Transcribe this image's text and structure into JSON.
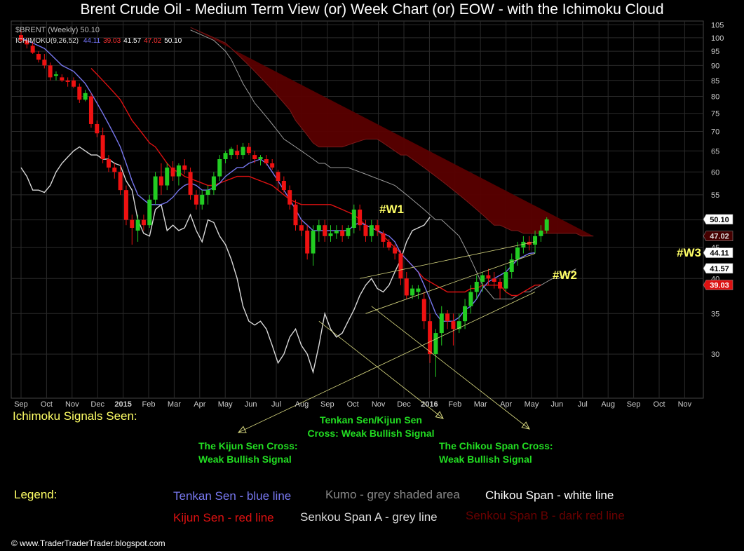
{
  "title": "Brent Crude Oil - Medium Term View (or) Week Chart (or) EOW - with the Ichimoku Cloud",
  "header": {
    "symbol_line": "$BRENT (Weekly) 50.10",
    "ichimoku_label": "ICHIMOKU(9,26,52)",
    "ichimoku_values": [
      {
        "text": "44.11",
        "color": "#7777ff"
      },
      {
        "text": "39.03",
        "color": "#ff3333"
      },
      {
        "text": "41.57",
        "color": "#ffffff"
      },
      {
        "text": "47.02",
        "color": "#ff3333"
      },
      {
        "text": "50.10",
        "color": "#ffffff"
      }
    ]
  },
  "annotations": {
    "w1": "#W1",
    "w2": "#W2",
    "w3": "#W3"
  },
  "signals": {
    "heading": "Ichimoku Signals Seen:",
    "tk_cross": [
      "Tenkan Sen/Kijun Sen",
      "Cross: Weak Bullish Signal"
    ],
    "kijun_cross": [
      "The Kijun Sen Cross:",
      "Weak Bullish Signal"
    ],
    "chikou_cross": [
      "The Chikou Span Cross:",
      "Weak Bullish Signal"
    ]
  },
  "legend": {
    "heading": "Legend:",
    "tenkan": "Tenkan Sen - blue line",
    "kumo": "Kumo - grey shaded area",
    "chikou": "Chikou Span - white line",
    "kijun": "Kijun Sen - red line",
    "senkou_a": "Senkou Span A - grey line",
    "senkou_b": "Senkou Span B - dark red line"
  },
  "copyright": "© www.TraderTraderTrader.blogspot.com",
  "colors": {
    "up": "#22cc22",
    "down": "#ee1111",
    "tenkan": "#7777ee",
    "kijun": "#dd1111",
    "chikou": "#d8d8d8",
    "cloud": "#5a0000",
    "grid": "#2a2a2a",
    "signal_text": "#22dd22",
    "heading_text": "#ffff66",
    "annotation_text": "#ffff66"
  },
  "chart_data": {
    "type": "candlestick",
    "y_scale": "log",
    "ylim": [
      25.5,
      106
    ],
    "y_ticks": [
      105,
      100,
      95,
      90,
      85,
      80,
      75,
      70,
      65,
      60,
      55,
      50,
      45,
      40,
      35,
      30
    ],
    "x_labels": [
      "Sep",
      "Oct",
      "Nov",
      "Dec",
      "2015",
      "Feb",
      "Mar",
      "Apr",
      "May",
      "Jun",
      "Jul",
      "Aug",
      "Sep",
      "Oct",
      "Nov",
      "Dec",
      "2016",
      "Feb",
      "Mar",
      "Apr",
      "May",
      "Jun",
      "Jul",
      "Aug",
      "Sep",
      "Oct",
      "Nov"
    ],
    "price_labels": [
      {
        "text": "50.10",
        "value": 50.1,
        "bg": "#ffffff",
        "fg": "#000000"
      },
      {
        "text": "47.02",
        "value": 47.02,
        "bg": "#440000",
        "fg": "#dddddd"
      },
      {
        "text": "44.11",
        "value": 44.11,
        "bg": "#ffffff",
        "fg": "#000000"
      },
      {
        "text": "41.57",
        "value": 41.57,
        "bg": "#ffffff",
        "fg": "#000000"
      },
      {
        "text": "39.03",
        "value": 39.03,
        "bg": "#dd1111",
        "fg": "#ffffff"
      }
    ],
    "candles": [
      {
        "o": 101,
        "h": 103,
        "l": 98,
        "c": 99
      },
      {
        "o": 99,
        "h": 100,
        "l": 96,
        "c": 97.5
      },
      {
        "o": 97,
        "h": 98.5,
        "l": 94,
        "c": 94.5
      },
      {
        "o": 94,
        "h": 95,
        "l": 91,
        "c": 92
      },
      {
        "o": 92,
        "h": 94,
        "l": 89,
        "c": 90
      },
      {
        "o": 90,
        "h": 91,
        "l": 85,
        "c": 86
      },
      {
        "o": 86.5,
        "h": 88,
        "l": 85,
        "c": 87
      },
      {
        "o": 86,
        "h": 87,
        "l": 84.5,
        "c": 85
      },
      {
        "o": 85,
        "h": 86,
        "l": 83,
        "c": 84.5
      },
      {
        "o": 85,
        "h": 86,
        "l": 82.5,
        "c": 83
      },
      {
        "o": 83,
        "h": 84,
        "l": 78,
        "c": 79
      },
      {
        "o": 79,
        "h": 82,
        "l": 78.5,
        "c": 81
      },
      {
        "o": 80,
        "h": 81,
        "l": 71,
        "c": 72
      },
      {
        "o": 72,
        "h": 73,
        "l": 68.5,
        "c": 69.5
      },
      {
        "o": 69,
        "h": 71,
        "l": 62,
        "c": 63
      },
      {
        "o": 63,
        "h": 64,
        "l": 60,
        "c": 61
      },
      {
        "o": 61,
        "h": 62,
        "l": 58.5,
        "c": 60
      },
      {
        "o": 60,
        "h": 61.5,
        "l": 55,
        "c": 56
      },
      {
        "o": 56,
        "h": 57,
        "l": 49,
        "c": 50
      },
      {
        "o": 50,
        "h": 51,
        "l": 45.5,
        "c": 48.5
      },
      {
        "o": 48,
        "h": 51,
        "l": 46,
        "c": 50
      },
      {
        "o": 50,
        "h": 51,
        "l": 48,
        "c": 49
      },
      {
        "o": 49,
        "h": 55,
        "l": 48.5,
        "c": 54
      },
      {
        "o": 54,
        "h": 60,
        "l": 53,
        "c": 59
      },
      {
        "o": 59,
        "h": 62,
        "l": 55,
        "c": 57
      },
      {
        "o": 57,
        "h": 62,
        "l": 56,
        "c": 61
      },
      {
        "o": 61,
        "h": 62.5,
        "l": 58,
        "c": 59
      },
      {
        "o": 59,
        "h": 62,
        "l": 57,
        "c": 61.5
      },
      {
        "o": 61.5,
        "h": 63,
        "l": 59.5,
        "c": 60.5
      },
      {
        "o": 60,
        "h": 61,
        "l": 54,
        "c": 55
      },
      {
        "o": 55,
        "h": 56,
        "l": 52,
        "c": 53
      },
      {
        "o": 53,
        "h": 56,
        "l": 52,
        "c": 55
      },
      {
        "o": 55,
        "h": 57,
        "l": 53,
        "c": 56
      },
      {
        "o": 56,
        "h": 60,
        "l": 55,
        "c": 59
      },
      {
        "o": 59,
        "h": 64,
        "l": 58,
        "c": 63
      },
      {
        "o": 63,
        "h": 65,
        "l": 62,
        "c": 64.5
      },
      {
        "o": 64,
        "h": 66,
        "l": 63,
        "c": 65.5
      },
      {
        "o": 65,
        "h": 66.5,
        "l": 63,
        "c": 64
      },
      {
        "o": 64,
        "h": 67,
        "l": 63,
        "c": 66
      },
      {
        "o": 66,
        "h": 67,
        "l": 64,
        "c": 64.5
      },
      {
        "o": 64,
        "h": 65,
        "l": 62,
        "c": 63
      },
      {
        "o": 63,
        "h": 64,
        "l": 61.5,
        "c": 63.5
      },
      {
        "o": 63,
        "h": 64,
        "l": 61.5,
        "c": 62
      },
      {
        "o": 62,
        "h": 63,
        "l": 60.5,
        "c": 61
      },
      {
        "o": 60,
        "h": 60.5,
        "l": 56,
        "c": 58
      },
      {
        "o": 58,
        "h": 59,
        "l": 55.5,
        "c": 56
      },
      {
        "o": 56,
        "h": 57,
        "l": 52,
        "c": 53
      },
      {
        "o": 53,
        "h": 54,
        "l": 48,
        "c": 49
      },
      {
        "o": 49,
        "h": 50,
        "l": 47,
        "c": 48
      },
      {
        "o": 48,
        "h": 49,
        "l": 43,
        "c": 44
      },
      {
        "o": 44,
        "h": 49,
        "l": 42,
        "c": 48
      },
      {
        "o": 48,
        "h": 50,
        "l": 46,
        "c": 49
      },
      {
        "o": 49,
        "h": 50,
        "l": 46,
        "c": 47
      },
      {
        "o": 47,
        "h": 49,
        "l": 46,
        "c": 47.5
      },
      {
        "o": 47.5,
        "h": 49,
        "l": 46.5,
        "c": 48
      },
      {
        "o": 48,
        "h": 49,
        "l": 46,
        "c": 47
      },
      {
        "o": 47,
        "h": 49,
        "l": 46.5,
        "c": 48.5
      },
      {
        "o": 48.5,
        "h": 53,
        "l": 47.5,
        "c": 52
      },
      {
        "o": 52,
        "h": 53,
        "l": 48,
        "c": 49
      },
      {
        "o": 49,
        "h": 50,
        "l": 46,
        "c": 47
      },
      {
        "o": 47,
        "h": 50,
        "l": 46,
        "c": 49
      },
      {
        "o": 49,
        "h": 50,
        "l": 47,
        "c": 48
      },
      {
        "o": 47.5,
        "h": 48,
        "l": 45,
        "c": 46
      },
      {
        "o": 46,
        "h": 46.5,
        "l": 44.5,
        "c": 45
      },
      {
        "o": 45,
        "h": 45.5,
        "l": 43,
        "c": 44
      },
      {
        "o": 44,
        "h": 44.5,
        "l": 39,
        "c": 40
      },
      {
        "o": 40,
        "h": 41,
        "l": 37,
        "c": 37.5
      },
      {
        "o": 37.5,
        "h": 39,
        "l": 37,
        "c": 38.5
      },
      {
        "o": 38,
        "h": 39,
        "l": 37,
        "c": 38.5
      },
      {
        "o": 37,
        "h": 38,
        "l": 33,
        "c": 34
      },
      {
        "o": 34,
        "h": 35,
        "l": 29,
        "c": 30
      },
      {
        "o": 30,
        "h": 33,
        "l": 27.5,
        "c": 32.5
      },
      {
        "o": 32.5,
        "h": 36,
        "l": 31,
        "c": 35
      },
      {
        "o": 35,
        "h": 35.5,
        "l": 33,
        "c": 34
      },
      {
        "o": 34,
        "h": 35,
        "l": 31,
        "c": 33
      },
      {
        "o": 33,
        "h": 35,
        "l": 32.5,
        "c": 34
      },
      {
        "o": 34,
        "h": 37,
        "l": 33,
        "c": 36
      },
      {
        "o": 36,
        "h": 39,
        "l": 35,
        "c": 38
      },
      {
        "o": 38,
        "h": 40.5,
        "l": 37,
        "c": 39.5
      },
      {
        "o": 39.5,
        "h": 41,
        "l": 38,
        "c": 40.5
      },
      {
        "o": 40.5,
        "h": 41.5,
        "l": 39,
        "c": 40
      },
      {
        "o": 40,
        "h": 41,
        "l": 38.5,
        "c": 39.5
      },
      {
        "o": 39.5,
        "h": 40,
        "l": 37,
        "c": 38.5
      },
      {
        "o": 38.5,
        "h": 42,
        "l": 38,
        "c": 41
      },
      {
        "o": 41,
        "h": 44,
        "l": 40,
        "c": 43
      },
      {
        "o": 43,
        "h": 46,
        "l": 42,
        "c": 45
      },
      {
        "o": 45,
        "h": 47,
        "l": 44,
        "c": 46
      },
      {
        "o": 46,
        "h": 47,
        "l": 44.5,
        "c": 45.5
      },
      {
        "o": 45.5,
        "h": 48,
        "l": 44,
        "c": 47
      },
      {
        "o": 47,
        "h": 49,
        "l": 46,
        "c": 48
      },
      {
        "o": 48,
        "h": 50.5,
        "l": 47.5,
        "c": 50.1
      }
    ],
    "tenkan": [
      100,
      99,
      98,
      97,
      96,
      94,
      92,
      90,
      89,
      88,
      86,
      84,
      81,
      78,
      75,
      72,
      69,
      66,
      62,
      58,
      55,
      54,
      53,
      53,
      53,
      53.5,
      54.5,
      56,
      57,
      57.5,
      57,
      56,
      56,
      56.5,
      57.5,
      59,
      60,
      61,
      61,
      62,
      62.5,
      63,
      62,
      60,
      58,
      56,
      54,
      52,
      50,
      49,
      48,
      48,
      48,
      48,
      48,
      48,
      48,
      49,
      49.5,
      49,
      48.5,
      48,
      47.5,
      47,
      46,
      44,
      43,
      42,
      41,
      39,
      37,
      35,
      34,
      34,
      34,
      34.5,
      35.5,
      36,
      37,
      38.5,
      39.5,
      40,
      40.5,
      41,
      42,
      43,
      43.5,
      44,
      44.11
    ],
    "kijun": [
      null,
      null,
      null,
      null,
      null,
      null,
      null,
      null,
      null,
      null,
      null,
      null,
      89,
      87,
      85,
      83,
      81,
      79,
      76,
      73,
      71,
      69,
      67,
      66,
      64,
      62,
      60.5,
      60,
      59,
      58.5,
      58,
      57.5,
      57,
      57,
      57.5,
      58,
      58.5,
      59,
      59,
      59,
      58.5,
      58,
      57.5,
      57,
      56,
      55,
      54,
      53.5,
      53,
      53,
      53,
      53,
      53,
      53,
      52.5,
      52,
      51.5,
      51,
      50,
      49,
      48.5,
      48,
      47,
      46,
      45,
      44,
      43,
      42,
      41,
      40,
      39.5,
      39,
      38.5,
      38,
      38,
      38,
      38,
      38.5,
      38.5,
      39,
      39,
      39,
      39,
      38,
      37.5,
      37.5,
      38,
      38.5,
      39,
      39.03
    ],
    "chikou": [
      61,
      59,
      56,
      56,
      55.5,
      57,
      60,
      62,
      63.5,
      65,
      66,
      65,
      64,
      64,
      63,
      63,
      62,
      61.5,
      58,
      56,
      50,
      47.5,
      47,
      52,
      53,
      48,
      49,
      48,
      48.5,
      51,
      48,
      46,
      50,
      49.5,
      47,
      45.5,
      43,
      40,
      36,
      34,
      33.5,
      34,
      33,
      31,
      29,
      30,
      32,
      33,
      31,
      30,
      28,
      31,
      35,
      33,
      32,
      32.5,
      34,
      35.5,
      37.5,
      39,
      40,
      38.5,
      38,
      39,
      41,
      43,
      46,
      48,
      48.5,
      49,
      50.5
    ],
    "kumo_top": [
      null,
      null,
      null,
      null,
      null,
      null,
      null,
      null,
      null,
      null,
      null,
      null,
      null,
      null,
      null,
      null,
      null,
      null,
      null,
      null,
      null,
      null,
      null,
      null,
      null,
      null,
      null,
      null,
      null,
      104,
      103,
      102,
      101,
      100,
      99,
      98,
      96,
      94,
      92,
      90,
      88,
      86,
      84,
      82,
      80,
      78,
      76,
      73,
      71,
      69,
      67,
      66,
      66,
      66,
      66,
      66,
      66.5,
      67,
      67.5,
      68,
      68,
      68,
      67,
      66,
      65,
      64,
      64,
      63,
      62,
      61,
      60,
      59,
      58,
      57,
      56,
      55,
      54,
      53,
      52,
      51,
      50,
      49,
      49,
      48.5,
      48,
      48,
      47.5,
      47.5,
      47.5,
      47.5,
      47.5,
      47.5,
      47.5,
      47.5,
      47.5,
      47.5,
      47,
      47,
      47.02
    ],
    "kumo_bottom": [
      null,
      null,
      null,
      null,
      null,
      null,
      null,
      null,
      null,
      null,
      null,
      null,
      null,
      null,
      null,
      null,
      null,
      null,
      null,
      null,
      null,
      null,
      null,
      null,
      null,
      null,
      null,
      null,
      null,
      103,
      102,
      101,
      100,
      99,
      97,
      95,
      92,
      88,
      84,
      81,
      78,
      76,
      74,
      72,
      70,
      68,
      67,
      66,
      65,
      64,
      63,
      62,
      62,
      61,
      61,
      61,
      61,
      60.5,
      60,
      59.5,
      59,
      58.5,
      58,
      57.5,
      57,
      56,
      55,
      54,
      53,
      52,
      51,
      50,
      50,
      49,
      48,
      47,
      45,
      43,
      41,
      39,
      38,
      37,
      37,
      37,
      37,
      37.5,
      38,
      38,
      38.5,
      39,
      39.5,
      40,
      40,
      40.5,
      41,
      41.5
    ],
    "arrows": [
      {
        "from_index": 88,
        "from_value": 38,
        "to_index": 61,
        "to_value": 31.5
      },
      {
        "from_index": 51,
        "from_value": 34,
        "to_index": 58,
        "to_value": 31.5
      },
      {
        "from_index": 60,
        "from_value": 36,
        "to_index": 73,
        "to_value": 30.5
      }
    ],
    "trend_lines": [
      {
        "from_index": 58,
        "from_value": 40,
        "to_index": 88,
        "to_value": 46
      },
      {
        "from_index": 59,
        "from_value": 35,
        "to_index": 88,
        "to_value": 44
      }
    ]
  }
}
